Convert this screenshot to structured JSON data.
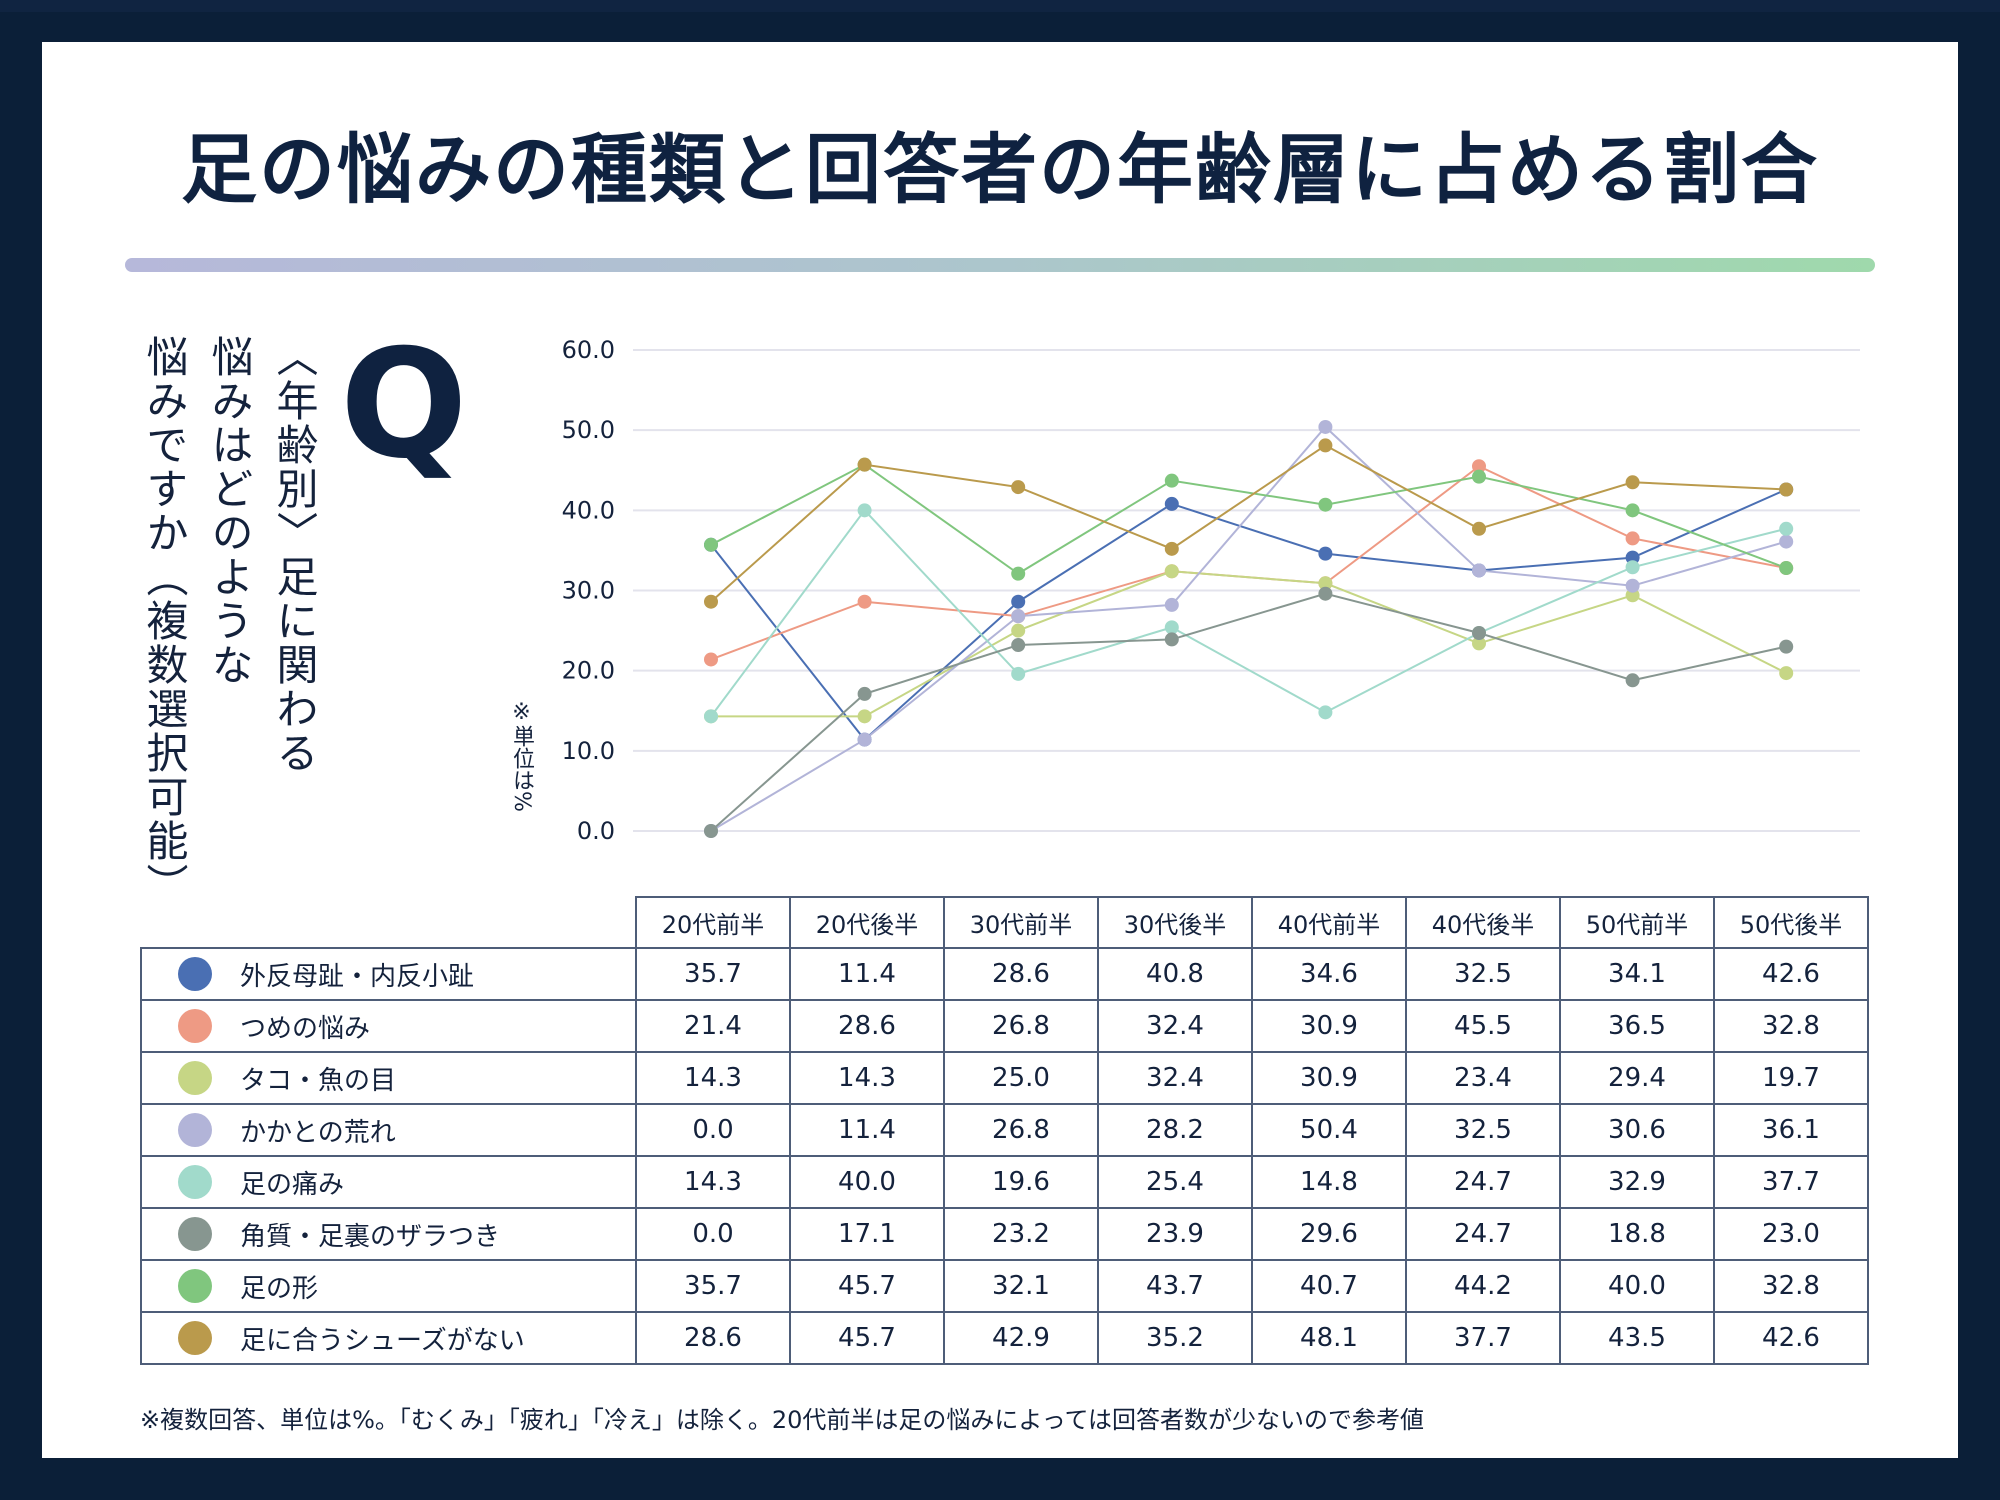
{
  "title": "足の悩みの種類と回答者の年齢層に占める割合",
  "question": {
    "mark": "Q",
    "lines": [
      "〈年齢別〉足に関わる",
      "悩みはどのような",
      "悩みですか（複数選択可能）"
    ]
  },
  "unit_note": "※単位は%",
  "footnote": "※複数回答、単位は%。「むくみ」「疲れ」「冷え」は除く。20代前半は足の悩みによっては回答者数が少ないので参考値",
  "chart_data": {
    "type": "line",
    "title": "足の悩みの種類と回答者の年齢層に占める割合",
    "xlabel": "",
    "ylabel": "※単位は%",
    "ylim": [
      0,
      60
    ],
    "yticks": [
      "0.0",
      "10.0",
      "20.0",
      "30.0",
      "40.0",
      "50.0",
      "60.0"
    ],
    "grid": true,
    "categories": [
      "20代前半",
      "20代後半",
      "30代前半",
      "30代後半",
      "40代前半",
      "40代後半",
      "50代前半",
      "50代後半"
    ],
    "series": [
      {
        "name": "外反母趾・内反小趾",
        "color": "#4a6fb3",
        "values": [
          35.7,
          11.4,
          28.6,
          40.8,
          34.6,
          32.5,
          34.1,
          42.6
        ]
      },
      {
        "name": "つめの悩み",
        "color": "#ee9a84",
        "values": [
          21.4,
          28.6,
          26.8,
          32.4,
          30.9,
          45.5,
          36.5,
          32.8
        ]
      },
      {
        "name": "タコ・魚の目",
        "color": "#c6d685",
        "values": [
          14.3,
          14.3,
          25.0,
          32.4,
          30.9,
          23.4,
          29.4,
          19.7
        ]
      },
      {
        "name": "かかとの荒れ",
        "color": "#b2b4d8",
        "values": [
          0.0,
          11.4,
          26.8,
          28.2,
          50.4,
          32.5,
          30.6,
          36.1
        ]
      },
      {
        "name": "足の痛み",
        "color": "#a1dacb",
        "values": [
          14.3,
          40.0,
          19.6,
          25.4,
          14.8,
          24.7,
          32.9,
          37.7
        ]
      },
      {
        "name": "角質・足裏のザラつき",
        "color": "#879690",
        "values": [
          0.0,
          17.1,
          23.2,
          23.9,
          29.6,
          24.7,
          18.8,
          23.0
        ]
      },
      {
        "name": "足の形",
        "color": "#80c67e",
        "values": [
          35.7,
          45.7,
          32.1,
          43.7,
          40.7,
          44.2,
          40.0,
          32.8
        ]
      },
      {
        "name": "足に合うシューズがない",
        "color": "#ba9a4c",
        "values": [
          28.6,
          45.7,
          42.9,
          35.2,
          48.1,
          37.7,
          43.5,
          42.6
        ]
      }
    ]
  },
  "table": {
    "columns": [
      "20代前半",
      "20代後半",
      "30代前半",
      "30代後半",
      "40代前半",
      "40代後半",
      "50代前半",
      "50代後半"
    ],
    "rows": [
      {
        "label": "外反母趾・内反小趾",
        "color": "#4a6fb3",
        "cells": [
          "35.7",
          "11.4",
          "28.6",
          "40.8",
          "34.6",
          "32.5",
          "34.1",
          "42.6"
        ]
      },
      {
        "label": "つめの悩み",
        "color": "#ee9a84",
        "cells": [
          "21.4",
          "28.6",
          "26.8",
          "32.4",
          "30.9",
          "45.5",
          "36.5",
          "32.8"
        ]
      },
      {
        "label": "タコ・魚の目",
        "color": "#c6d685",
        "cells": [
          "14.3",
          "14.3",
          "25.0",
          "32.4",
          "30.9",
          "23.4",
          "29.4",
          "19.7"
        ]
      },
      {
        "label": "かかとの荒れ",
        "color": "#b2b4d8",
        "cells": [
          "0.0",
          "11.4",
          "26.8",
          "28.2",
          "50.4",
          "32.5",
          "30.6",
          "36.1"
        ]
      },
      {
        "label": "足の痛み",
        "color": "#a1dacb",
        "cells": [
          "14.3",
          "40.0",
          "19.6",
          "25.4",
          "14.8",
          "24.7",
          "32.9",
          "37.7"
        ]
      },
      {
        "label": "角質・足裏のザラつき",
        "color": "#879690",
        "cells": [
          "0.0",
          "17.1",
          "23.2",
          "23.9",
          "29.6",
          "24.7",
          "18.8",
          "23.0"
        ]
      },
      {
        "label": "足の形",
        "color": "#80c67e",
        "cells": [
          "35.7",
          "45.7",
          "32.1",
          "43.7",
          "40.7",
          "44.2",
          "40.0",
          "32.8"
        ]
      },
      {
        "label": "足に合うシューズがない",
        "color": "#ba9a4c",
        "cells": [
          "28.6",
          "45.7",
          "42.9",
          "35.2",
          "48.1",
          "37.7",
          "43.5",
          "42.6"
        ]
      }
    ]
  }
}
